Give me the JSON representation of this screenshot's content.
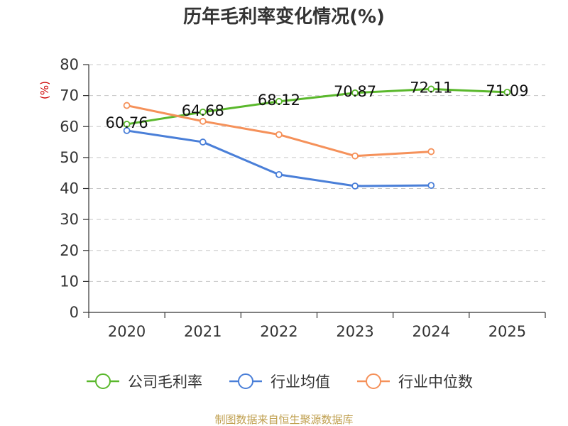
{
  "chart_data": {
    "type": "line",
    "title": "历年毛利率变化情况(%)",
    "ylabel": "(%)",
    "xlabel": "",
    "categories": [
      "2020",
      "2021",
      "2022",
      "2023",
      "2024",
      "2025"
    ],
    "ylim": [
      0,
      80
    ],
    "yticks": [
      0,
      10,
      20,
      30,
      40,
      50,
      60,
      70,
      80
    ],
    "grid": true,
    "legend_position": "bottom",
    "series": [
      {
        "name": "公司毛利率",
        "color": "#5ab82c",
        "values": [
          60.76,
          64.68,
          68.12,
          70.87,
          72.11,
          71.09
        ],
        "labels": [
          "60.76",
          "64.68",
          "68.12",
          "70.87",
          "72.11",
          "71.09"
        ]
      },
      {
        "name": "行业均值",
        "color": "#4a7fd8",
        "values": [
          58.7,
          55.0,
          44.5,
          40.8,
          41.0,
          null
        ]
      },
      {
        "name": "行业中位数",
        "color": "#f5915a",
        "values": [
          66.8,
          61.7,
          57.4,
          50.5,
          51.9,
          null
        ]
      }
    ]
  },
  "source": "制图数据来自恒生聚源数据库"
}
